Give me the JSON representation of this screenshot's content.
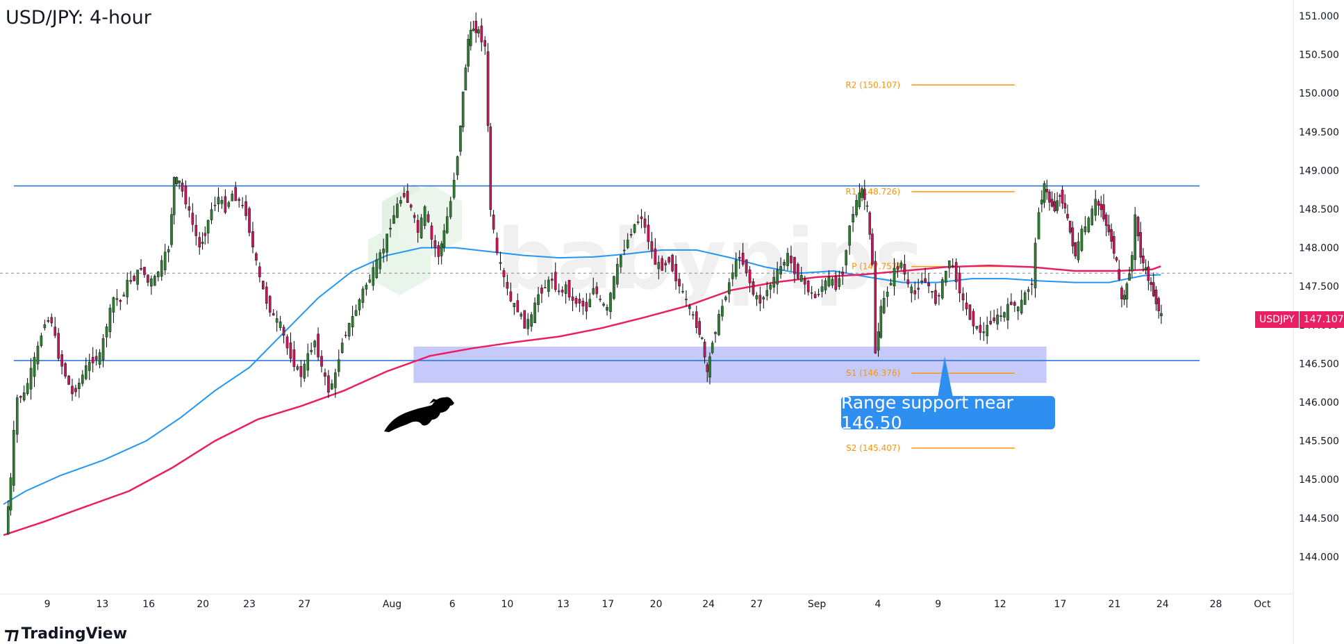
{
  "title": "USD/JPY: 4-hour",
  "footer": {
    "brand": "TradingView",
    "icon": "tradingview-logo-icon"
  },
  "watermark": "babypips",
  "callout": "Range support near 146.50",
  "symbol_badge": {
    "symbol": "USDJPY",
    "price": "147.107"
  },
  "colors": {
    "up": "#26a69a",
    "down": "#ef5350",
    "candle_body_up": "#2e7d32",
    "candle_body_down": "#c2185b",
    "ma_blue": "#2196f3",
    "ma_pink": "#e91e63",
    "pivot": "#f89406",
    "range_zone": "#b3b8f8",
    "callout": "#2f8ff0",
    "range_lines": "#1e6fd9"
  },
  "chart_data": {
    "type": "candlestick",
    "y_ticks": [
      "151.000",
      "150.500",
      "150.000",
      "149.500",
      "149.000",
      "148.500",
      "148.000",
      "147.500",
      "147.000",
      "146.500",
      "146.000",
      "145.500",
      "145.000",
      "144.500",
      "144.000"
    ],
    "x_ticks": [
      "9",
      "13",
      "16",
      "20",
      "23",
      "27",
      "Aug",
      "6",
      "10",
      "13",
      "17",
      "20",
      "24",
      "27",
      "Sep",
      "4",
      "9",
      "12",
      "17",
      "21",
      "24",
      "28",
      "Oct"
    ],
    "ylim": [
      143.6,
      151.15
    ],
    "current_price": 147.107,
    "dotted_level": 147.67,
    "resistance_level": 148.8,
    "support_level": 146.54,
    "support_zone": [
      146.25,
      146.72
    ],
    "pivots": [
      {
        "label": "R2 (150.107)",
        "value": 150.107
      },
      {
        "label": "R1 (148.726)",
        "value": 148.726
      },
      {
        "label": "P (147.757)",
        "value": 147.757
      },
      {
        "label": "S1 (146.376)",
        "value": 146.376
      },
      {
        "label": "S2 (145.407)",
        "value": 145.407
      }
    ],
    "ma_blue": [
      [
        4,
        144.68
      ],
      [
        30,
        144.85
      ],
      [
        70,
        145.05
      ],
      [
        120,
        145.25
      ],
      [
        170,
        145.5
      ],
      [
        210,
        145.8
      ],
      [
        250,
        146.15
      ],
      [
        290,
        146.45
      ],
      [
        330,
        146.9
      ],
      [
        370,
        147.35
      ],
      [
        410,
        147.7
      ],
      [
        450,
        147.9
      ],
      [
        490,
        148.0
      ],
      [
        530,
        148.0
      ],
      [
        570,
        147.95
      ],
      [
        610,
        147.9
      ],
      [
        650,
        147.87
      ],
      [
        690,
        147.88
      ],
      [
        730,
        147.92
      ],
      [
        770,
        147.97
      ],
      [
        810,
        147.97
      ],
      [
        850,
        147.87
      ],
      [
        890,
        147.75
      ],
      [
        930,
        147.67
      ],
      [
        970,
        147.7
      ],
      [
        1010,
        147.62
      ],
      [
        1050,
        147.55
      ],
      [
        1090,
        147.55
      ],
      [
        1130,
        147.6
      ],
      [
        1170,
        147.6
      ],
      [
        1210,
        147.57
      ],
      [
        1250,
        147.55
      ],
      [
        1290,
        147.55
      ],
      [
        1330,
        147.64
      ],
      [
        1350,
        147.65
      ]
    ],
    "ma_pink": [
      [
        4,
        144.28
      ],
      [
        50,
        144.45
      ],
      [
        100,
        144.65
      ],
      [
        150,
        144.85
      ],
      [
        200,
        145.15
      ],
      [
        250,
        145.5
      ],
      [
        300,
        145.78
      ],
      [
        350,
        145.95
      ],
      [
        400,
        146.15
      ],
      [
        450,
        146.4
      ],
      [
        500,
        146.6
      ],
      [
        550,
        146.7
      ],
      [
        600,
        146.78
      ],
      [
        650,
        146.85
      ],
      [
        700,
        146.96
      ],
      [
        750,
        147.1
      ],
      [
        800,
        147.25
      ],
      [
        850,
        147.45
      ],
      [
        900,
        147.55
      ],
      [
        950,
        147.62
      ],
      [
        1000,
        147.65
      ],
      [
        1050,
        147.7
      ],
      [
        1100,
        147.75
      ],
      [
        1150,
        147.77
      ],
      [
        1200,
        147.75
      ],
      [
        1250,
        147.7
      ],
      [
        1300,
        147.7
      ],
      [
        1340,
        147.72
      ],
      [
        1350,
        147.76
      ]
    ],
    "price_path": [
      [
        8,
        144.3
      ],
      [
        14,
        145.0
      ],
      [
        18,
        145.6
      ],
      [
        22,
        146.05
      ],
      [
        30,
        146.1
      ],
      [
        38,
        146.4
      ],
      [
        46,
        146.7
      ],
      [
        54,
        147.05
      ],
      [
        62,
        147.05
      ],
      [
        70,
        146.6
      ],
      [
        78,
        146.35
      ],
      [
        86,
        146.1
      ],
      [
        94,
        146.25
      ],
      [
        102,
        146.45
      ],
      [
        110,
        146.55
      ],
      [
        118,
        146.6
      ],
      [
        126,
        147.0
      ],
      [
        134,
        147.35
      ],
      [
        142,
        147.3
      ],
      [
        150,
        147.55
      ],
      [
        158,
        147.6
      ],
      [
        166,
        147.75
      ],
      [
        174,
        147.55
      ],
      [
        182,
        147.6
      ],
      [
        190,
        147.8
      ],
      [
        198,
        148.0
      ],
      [
        204,
        148.9
      ],
      [
        210,
        148.85
      ],
      [
        218,
        148.6
      ],
      [
        226,
        148.3
      ],
      [
        234,
        148.0
      ],
      [
        240,
        148.2
      ],
      [
        248,
        148.5
      ],
      [
        256,
        148.65
      ],
      [
        264,
        148.5
      ],
      [
        272,
        148.7
      ],
      [
        280,
        148.6
      ],
      [
        288,
        148.45
      ],
      [
        296,
        148.0
      ],
      [
        304,
        147.6
      ],
      [
        312,
        147.3
      ],
      [
        320,
        147.1
      ],
      [
        328,
        147.0
      ],
      [
        336,
        146.7
      ],
      [
        344,
        146.5
      ],
      [
        352,
        146.35
      ],
      [
        360,
        146.6
      ],
      [
        368,
        146.8
      ],
      [
        376,
        146.45
      ],
      [
        384,
        146.15
      ],
      [
        392,
        146.35
      ],
      [
        400,
        146.8
      ],
      [
        408,
        147.0
      ],
      [
        416,
        147.2
      ],
      [
        424,
        147.45
      ],
      [
        432,
        147.6
      ],
      [
        440,
        147.8
      ],
      [
        448,
        148.0
      ],
      [
        456,
        148.3
      ],
      [
        464,
        148.55
      ],
      [
        472,
        148.7
      ],
      [
        480,
        148.5
      ],
      [
        488,
        148.2
      ],
      [
        496,
        148.5
      ],
      [
        504,
        148.1
      ],
      [
        512,
        147.9
      ],
      [
        518,
        148.2
      ],
      [
        526,
        148.6
      ],
      [
        534,
        149.2
      ],
      [
        540,
        150.0
      ],
      [
        546,
        150.7
      ],
      [
        552,
        150.85
      ],
      [
        558,
        150.8
      ],
      [
        566,
        150.6
      ],
      [
        572,
        148.5
      ],
      [
        580,
        147.9
      ],
      [
        588,
        147.6
      ],
      [
        596,
        147.3
      ],
      [
        604,
        147.2
      ],
      [
        612,
        147.0
      ],
      [
        620,
        147.1
      ],
      [
        628,
        147.4
      ],
      [
        636,
        147.5
      ],
      [
        644,
        147.6
      ],
      [
        652,
        147.4
      ],
      [
        660,
        147.5
      ],
      [
        668,
        147.3
      ],
      [
        676,
        147.3
      ],
      [
        684,
        147.2
      ],
      [
        692,
        147.5
      ],
      [
        700,
        147.3
      ],
      [
        708,
        147.2
      ],
      [
        716,
        147.6
      ],
      [
        724,
        147.9
      ],
      [
        732,
        148.1
      ],
      [
        740,
        148.3
      ],
      [
        748,
        148.4
      ],
      [
        756,
        148.1
      ],
      [
        764,
        147.8
      ],
      [
        772,
        147.75
      ],
      [
        780,
        147.85
      ],
      [
        788,
        147.6
      ],
      [
        796,
        147.4
      ],
      [
        804,
        147.2
      ],
      [
        812,
        147.0
      ],
      [
        818,
        146.8
      ],
      [
        824,
        146.35
      ],
      [
        830,
        146.8
      ],
      [
        838,
        147.1
      ],
      [
        846,
        147.4
      ],
      [
        854,
        147.7
      ],
      [
        862,
        147.9
      ],
      [
        870,
        147.7
      ],
      [
        878,
        147.4
      ],
      [
        886,
        147.3
      ],
      [
        894,
        147.45
      ],
      [
        902,
        147.6
      ],
      [
        910,
        147.75
      ],
      [
        918,
        147.9
      ],
      [
        926,
        147.7
      ],
      [
        934,
        147.6
      ],
      [
        942,
        147.45
      ],
      [
        950,
        147.35
      ],
      [
        958,
        147.5
      ],
      [
        966,
        147.6
      ],
      [
        974,
        147.5
      ],
      [
        982,
        147.7
      ],
      [
        990,
        148.3
      ],
      [
        998,
        148.6
      ],
      [
        1004,
        148.75
      ],
      [
        1010,
        148.5
      ],
      [
        1016,
        147.8
      ],
      [
        1020,
        146.65
      ],
      [
        1026,
        147.2
      ],
      [
        1034,
        147.45
      ],
      [
        1042,
        147.7
      ],
      [
        1050,
        147.8
      ],
      [
        1058,
        147.5
      ],
      [
        1066,
        147.4
      ],
      [
        1074,
        147.6
      ],
      [
        1082,
        147.5
      ],
      [
        1090,
        147.3
      ],
      [
        1098,
        147.55
      ],
      [
        1106,
        147.85
      ],
      [
        1114,
        147.6
      ],
      [
        1122,
        147.3
      ],
      [
        1130,
        147.1
      ],
      [
        1138,
        146.95
      ],
      [
        1146,
        146.9
      ],
      [
        1154,
        147.05
      ],
      [
        1162,
        147.1
      ],
      [
        1170,
        147.15
      ],
      [
        1178,
        147.3
      ],
      [
        1186,
        147.2
      ],
      [
        1194,
        147.4
      ],
      [
        1202,
        147.55
      ],
      [
        1210,
        148.5
      ],
      [
        1216,
        148.8
      ],
      [
        1222,
        148.6
      ],
      [
        1228,
        148.5
      ],
      [
        1234,
        148.7
      ],
      [
        1240,
        148.5
      ],
      [
        1246,
        148.2
      ],
      [
        1252,
        147.9
      ],
      [
        1260,
        148.2
      ],
      [
        1268,
        148.35
      ],
      [
        1276,
        148.6
      ],
      [
        1282,
        148.5
      ],
      [
        1288,
        148.3
      ],
      [
        1294,
        148.1
      ],
      [
        1300,
        147.8
      ],
      [
        1306,
        147.3
      ],
      [
        1312,
        147.5
      ],
      [
        1318,
        147.9
      ],
      [
        1322,
        148.4
      ],
      [
        1328,
        147.9
      ],
      [
        1334,
        147.7
      ],
      [
        1340,
        147.5
      ],
      [
        1346,
        147.3
      ],
      [
        1352,
        147.107
      ]
    ]
  }
}
